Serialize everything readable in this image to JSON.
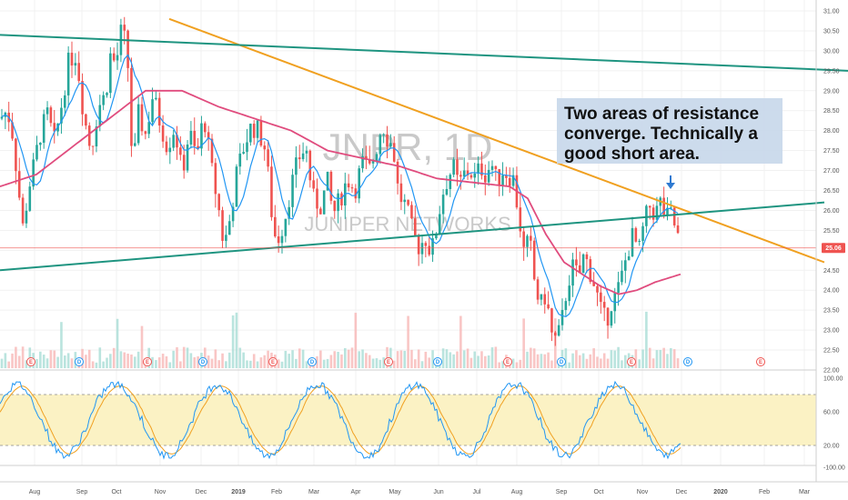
{
  "chart_data": {
    "type": "candlestick",
    "watermark": {
      "symbol": "JNPR, 1D",
      "company": "JUNIPER NETWORKS"
    },
    "annotation": {
      "lines": [
        "Two areas of resistance",
        "converge.  Technically a",
        "good short area."
      ]
    },
    "last_price_label": "25.06",
    "last_price": 25.06,
    "price_axis": {
      "ticks": [
        "31.00",
        "30.50",
        "30.00",
        "29.50",
        "29.00",
        "28.50",
        "28.00",
        "27.50",
        "27.00",
        "26.50",
        "26.00",
        "25.50",
        "25.00",
        "24.50",
        "24.00",
        "23.50",
        "23.00",
        "22.50",
        "22.00"
      ],
      "range": [
        21.9,
        31.2
      ]
    },
    "oscillator_axis": {
      "ticks": [
        "100.00",
        "60.00",
        "20.00",
        "-100.00"
      ],
      "levels": [
        80,
        20
      ]
    },
    "time_axis": {
      "labels": [
        "Aug",
        "Sep",
        "Oct",
        "Nov",
        "Dec",
        "2019",
        "Feb",
        "Mar",
        "Apr",
        "May",
        "Jun",
        "Jul",
        "Aug",
        "Sep",
        "Oct",
        "Nov",
        "Dec",
        "2020",
        "Feb",
        "Mar"
      ]
    },
    "price_anchors": [
      [
        0,
        28.3
      ],
      [
        8,
        28.5
      ],
      [
        14,
        27.9
      ],
      [
        20,
        26.6
      ],
      [
        26,
        25.4
      ],
      [
        30,
        26.4
      ],
      [
        37,
        27.1
      ],
      [
        44,
        27.9
      ],
      [
        52,
        28.4
      ],
      [
        60,
        27.7
      ],
      [
        68,
        28.7
      ],
      [
        76,
        29.8
      ],
      [
        84,
        29.9
      ],
      [
        92,
        28.4
      ],
      [
        100,
        27.5
      ],
      [
        108,
        28.6
      ],
      [
        116,
        28.9
      ],
      [
        122,
        30.0
      ],
      [
        127,
        29.6
      ],
      [
        134,
        30.6
      ],
      [
        140,
        29.9
      ],
      [
        146,
        26.9
      ],
      [
        152,
        28.4
      ],
      [
        160,
        27.9
      ],
      [
        168,
        28.9
      ],
      [
        176,
        28.2
      ],
      [
        184,
        27.6
      ],
      [
        192,
        28.1
      ],
      [
        200,
        26.9
      ],
      [
        208,
        28.0
      ],
      [
        216,
        27.3
      ],
      [
        224,
        28.4
      ],
      [
        232,
        27.1
      ],
      [
        240,
        26.1
      ],
      [
        246,
        25.1
      ],
      [
        252,
        25.7
      ],
      [
        260,
        26.9
      ],
      [
        268,
        27.6
      ],
      [
        276,
        28.1
      ],
      [
        284,
        28.0
      ],
      [
        292,
        27.5
      ],
      [
        300,
        25.6
      ],
      [
        304,
        25.2
      ],
      [
        312,
        25.7
      ],
      [
        320,
        26.6
      ],
      [
        328,
        27.3
      ],
      [
        336,
        27.6
      ],
      [
        344,
        26.3
      ],
      [
        352,
        26.1
      ],
      [
        360,
        26.7
      ],
      [
        366,
        25.9
      ],
      [
        374,
        26.3
      ],
      [
        382,
        26.8
      ],
      [
        390,
        26.5
      ],
      [
        398,
        27.2
      ],
      [
        406,
        27.0
      ],
      [
        414,
        27.6
      ],
      [
        420,
        28.2
      ],
      [
        426,
        27.8
      ],
      [
        432,
        27.6
      ],
      [
        438,
        26.4
      ],
      [
        446,
        26.1
      ],
      [
        454,
        25.4
      ],
      [
        460,
        25.1
      ],
      [
        468,
        25.3
      ],
      [
        474,
        24.9
      ],
      [
        480,
        25.6
      ],
      [
        486,
        26.4
      ],
      [
        492,
        26.8
      ],
      [
        498,
        27.1
      ],
      [
        504,
        26.6
      ],
      [
        510,
        26.9
      ],
      [
        516,
        27.0
      ],
      [
        522,
        26.8
      ],
      [
        528,
        27.1
      ],
      [
        534,
        26.9
      ],
      [
        540,
        27.2
      ],
      [
        546,
        26.7
      ],
      [
        552,
        27.0
      ],
      [
        558,
        26.9
      ],
      [
        564,
        26.8
      ],
      [
        570,
        25.9
      ],
      [
        576,
        24.9
      ],
      [
        582,
        25.3
      ],
      [
        588,
        24.1
      ],
      [
        594,
        23.6
      ],
      [
        600,
        23.9
      ],
      [
        606,
        22.9
      ],
      [
        612,
        22.7
      ],
      [
        618,
        23.3
      ],
      [
        624,
        24.2
      ],
      [
        630,
        24.6
      ],
      [
        636,
        24.3
      ],
      [
        642,
        24.9
      ],
      [
        648,
        24.5
      ],
      [
        654,
        24.1
      ],
      [
        660,
        23.5
      ],
      [
        666,
        23.2
      ],
      [
        672,
        23.7
      ],
      [
        678,
        23.9
      ],
      [
        684,
        24.4
      ],
      [
        690,
        25.0
      ],
      [
        696,
        25.4
      ],
      [
        702,
        24.9
      ],
      [
        708,
        25.7
      ],
      [
        714,
        26.1
      ],
      [
        720,
        25.9
      ],
      [
        726,
        26.2
      ],
      [
        732,
        25.8
      ],
      [
        738,
        25.9
      ],
      [
        744,
        25.4
      ],
      [
        748,
        25.1
      ]
    ],
    "moving_average_slow": [
      [
        0,
        26.6
      ],
      [
        40,
        26.9
      ],
      [
        80,
        27.6
      ],
      [
        120,
        28.3
      ],
      [
        160,
        29.0
      ],
      [
        200,
        29.0
      ],
      [
        240,
        28.6
      ],
      [
        280,
        28.3
      ],
      [
        320,
        28.0
      ],
      [
        360,
        27.5
      ],
      [
        400,
        27.3
      ],
      [
        440,
        27.1
      ],
      [
        480,
        26.8
      ],
      [
        520,
        26.7
      ],
      [
        560,
        26.6
      ],
      [
        580,
        26.3
      ],
      [
        600,
        25.4
      ],
      [
        620,
        24.7
      ],
      [
        640,
        24.4
      ],
      [
        660,
        24.1
      ],
      [
        680,
        23.9
      ],
      [
        700,
        24.0
      ],
      [
        720,
        24.2
      ],
      [
        748,
        24.4
      ]
    ],
    "trendlines": [
      {
        "name": "descending resistance",
        "from": [
          186,
          30.8
        ],
        "to": [
          906,
          24.7
        ],
        "color": "#f0a020"
      },
      {
        "name": "upper channel",
        "from": [
          0,
          30.4
        ],
        "to": [
          932,
          29.5
        ],
        "color": "#1e9480"
      },
      {
        "name": "rising resistance",
        "from": [
          0,
          24.5
        ],
        "to": [
          906,
          26.2
        ],
        "color": "#1e9480"
      }
    ],
    "events": [
      {
        "label": "E",
        "x": 34,
        "type": "earnings"
      },
      {
        "label": "D",
        "x": 87,
        "type": "dividend"
      },
      {
        "label": "E",
        "x": 162,
        "type": "earnings"
      },
      {
        "label": "D",
        "x": 223,
        "type": "dividend"
      },
      {
        "label": "E",
        "x": 300,
        "type": "earnings"
      },
      {
        "label": "D",
        "x": 343,
        "type": "dividend"
      },
      {
        "label": "E",
        "x": 427,
        "type": "earnings"
      },
      {
        "label": "D",
        "x": 481,
        "type": "dividend"
      },
      {
        "label": "E",
        "x": 558,
        "type": "earnings"
      },
      {
        "label": "D",
        "x": 617,
        "type": "dividend"
      },
      {
        "label": "E",
        "x": 694,
        "type": "earnings"
      },
      {
        "label": "D",
        "x": 756,
        "type": "dividend"
      },
      {
        "label": "E",
        "x": 836,
        "type": "earnings"
      }
    ],
    "colors": {
      "up": "#26a69a",
      "down": "#ef5350",
      "ma_fast": "#2196f3",
      "ma_slow": "#e04c7e",
      "osc_k": "#2196f3",
      "osc_d": "#f0a020",
      "osc_band": "#fbf2c4",
      "annotation_box": "#c7d7ea",
      "price_label": "#ef5350",
      "arrow": "#2f7ad1"
    }
  }
}
